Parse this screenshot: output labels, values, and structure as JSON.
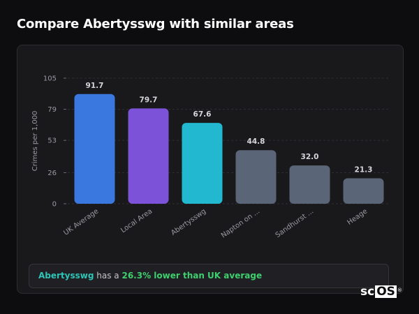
{
  "header": {
    "title": "Compare Abertysswg with similar areas"
  },
  "note": {
    "area": "Abertysswg",
    "text_mid": " has a ",
    "highlight": "26.3% lower than UK average"
  },
  "brand": {
    "prefix": "sc",
    "boxed": "OS",
    "mark": "®"
  },
  "chart_data": {
    "type": "bar",
    "title": "",
    "xlabel": "",
    "ylabel": "Crimes per 1,000",
    "ylim": [
      0,
      105
    ],
    "yticks": [
      0,
      26,
      53,
      79,
      105
    ],
    "grid": true,
    "categories": [
      "UK Average",
      "Local Area",
      "Abertysswg",
      "Napton on ...",
      "Sandhurst ...",
      "Heage"
    ],
    "values": [
      91.7,
      79.7,
      67.6,
      44.8,
      32.0,
      21.3
    ],
    "value_labels": [
      "91.7",
      "79.7",
      "67.6",
      "44.8",
      "32.0",
      "21.3"
    ],
    "colors": [
      "#3a78e0",
      "#7b52d8",
      "#22b8d0",
      "#5a6577",
      "#5a6577",
      "#5a6577"
    ]
  }
}
